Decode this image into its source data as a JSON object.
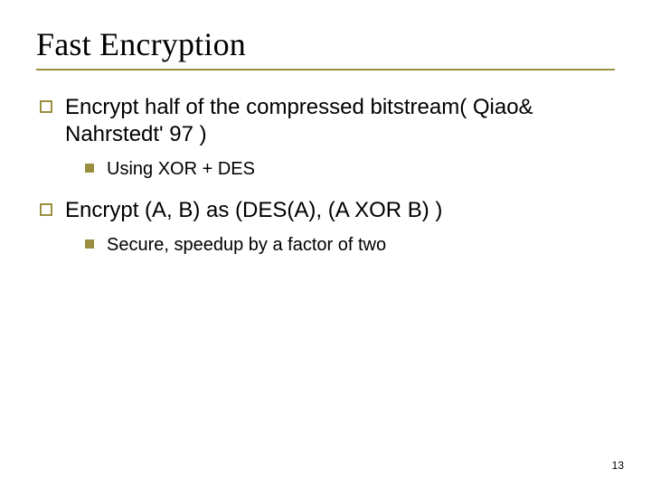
{
  "slide": {
    "title": "Fast Encryption",
    "accent_color": "#9a8f40",
    "title_underline_color": "#9a8f40",
    "background_color": "#ffffff",
    "title_fontsize": 36,
    "body_fontsize_lvl1": 24,
    "body_fontsize_lvl2": 20,
    "text_color": "#000000",
    "page_number": "13"
  },
  "content": {
    "items": [
      {
        "text": "Encrypt half of the compressed bitstream( Qiao& Nahrstedt' 97 )",
        "sub": [
          {
            "text": "Using XOR + DES"
          }
        ]
      },
      {
        "text": "Encrypt (A, B) as (DES(A), (A XOR B) )",
        "sub": [
          {
            "text": "Secure, speedup by a factor of two"
          }
        ]
      }
    ]
  }
}
